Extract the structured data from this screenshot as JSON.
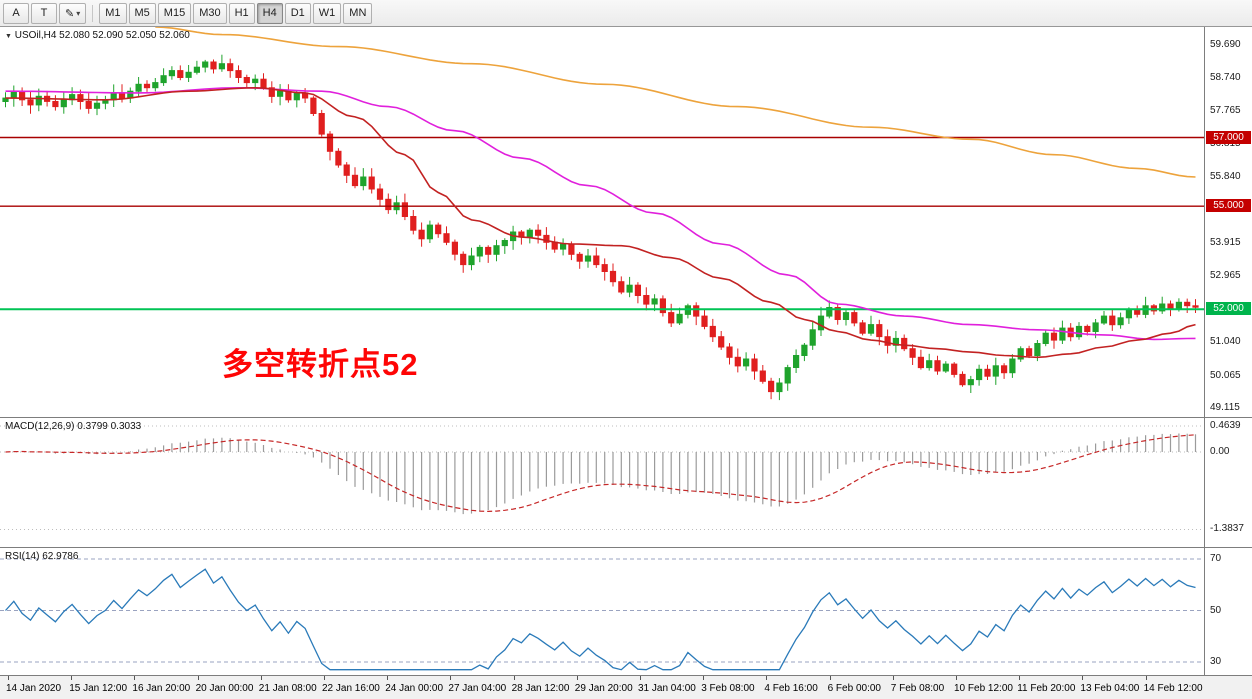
{
  "toolbar": {
    "tool_buttons": [
      {
        "label": "A"
      },
      {
        "label": "T"
      },
      {
        "label": "✎",
        "caret": "▾"
      }
    ],
    "timeframes": [
      "M1",
      "M5",
      "M15",
      "M30",
      "H1",
      "H4",
      "D1",
      "W1",
      "MN"
    ],
    "active_timeframe": "H4"
  },
  "main_chart": {
    "symbol_line": "USOil,H4 52.080 52.090 52.050 52.060",
    "annotation": "多空转折点52"
  },
  "macd_panel": {
    "header": "MACD(12,26,9) 0.3799 0.3033"
  },
  "rsi_panel": {
    "header": "RSI(14) 62.9786"
  },
  "chart_data": {
    "type": "candlestick",
    "symbol": "USOil",
    "timeframe": "H4",
    "ohlc_current": {
      "open": "52.080",
      "high": "52.090",
      "low": "52.050",
      "close": "52.060"
    },
    "price_ticks": [
      "59.690",
      "58.740",
      "57.765",
      "56.815",
      "55.840",
      "54.890",
      "53.915",
      "52.965",
      "51.990",
      "51.040",
      "50.065",
      "49.115"
    ],
    "h_lines": [
      {
        "value": 57.0,
        "label": "57.000",
        "color": "#a80000",
        "badge_color": "#c40000",
        "width": 1.4
      },
      {
        "value": 55.0,
        "label": "55.000",
        "color": "#a80000",
        "badge_color": "#c40000",
        "width": 1.4
      },
      {
        "value": 52.0,
        "label": "52.000",
        "color": "#00c455",
        "badge_color": "#00b44c",
        "width": 2
      }
    ],
    "candles": {
      "first_open": 58.05,
      "up_color": "#1fa32c",
      "down_color": "#e01f1f",
      "closes": [
        58.15,
        58.35,
        58.1,
        57.95,
        58.2,
        58.05,
        57.9,
        58.1,
        58.25,
        58.05,
        57.85,
        58.0,
        58.1,
        58.3,
        58.15,
        58.35,
        58.55,
        58.45,
        58.6,
        58.8,
        58.95,
        58.75,
        58.9,
        59.05,
        59.2,
        59.0,
        59.15,
        58.95,
        58.75,
        58.6,
        58.7,
        58.45,
        58.2,
        58.35,
        58.1,
        58.3,
        58.15,
        57.7,
        57.1,
        56.6,
        56.2,
        55.9,
        55.6,
        55.85,
        55.5,
        55.2,
        54.9,
        55.1,
        54.7,
        54.3,
        54.05,
        54.45,
        54.2,
        53.95,
        53.6,
        53.3,
        53.55,
        53.8,
        53.6,
        53.85,
        54.0,
        54.25,
        54.1,
        54.3,
        54.15,
        53.95,
        53.75,
        53.9,
        53.6,
        53.4,
        53.55,
        53.3,
        53.1,
        52.8,
        52.5,
        52.7,
        52.4,
        52.15,
        52.3,
        51.9,
        51.6,
        51.85,
        52.1,
        51.8,
        51.5,
        51.2,
        50.9,
        50.6,
        50.35,
        50.55,
        50.2,
        49.9,
        49.6,
        49.85,
        50.3,
        50.65,
        50.95,
        51.4,
        51.8,
        52.05,
        51.7,
        51.9,
        51.6,
        51.3,
        51.55,
        51.2,
        50.95,
        51.15,
        50.85,
        50.6,
        50.3,
        50.5,
        50.2,
        50.4,
        50.1,
        49.8,
        49.95,
        50.25,
        50.05,
        50.35,
        50.15,
        50.55,
        50.85,
        50.65,
        51.0,
        51.3,
        51.1,
        51.45,
        51.2,
        51.5,
        51.35,
        51.6,
        51.8,
        51.55,
        51.75,
        52.0,
        51.85,
        52.1,
        51.95,
        52.15,
        52.0,
        52.2,
        52.1,
        52.06
      ]
    },
    "ma_lines": [
      {
        "name": "slow-ma-orange",
        "color": "#eda33c",
        "points": [
          [
            18,
            60.22
          ],
          [
            26,
            60.0
          ],
          [
            40,
            59.65
          ],
          [
            56,
            59.15
          ],
          [
            72,
            58.55
          ],
          [
            88,
            57.9
          ],
          [
            104,
            57.3
          ],
          [
            116,
            56.95
          ],
          [
            126,
            56.5
          ],
          [
            136,
            56.1
          ],
          [
            143,
            55.85
          ]
        ]
      },
      {
        "name": "medium-ma-magenta",
        "color": "#e020dc",
        "points": [
          [
            0,
            58.35
          ],
          [
            16,
            58.3
          ],
          [
            28,
            58.45
          ],
          [
            38,
            58.35
          ],
          [
            46,
            57.9
          ],
          [
            54,
            57.2
          ],
          [
            62,
            56.4
          ],
          [
            70,
            55.6
          ],
          [
            78,
            54.8
          ],
          [
            86,
            53.9
          ],
          [
            94,
            53.0
          ],
          [
            100,
            52.15
          ],
          [
            108,
            51.8
          ],
          [
            116,
            51.55
          ],
          [
            124,
            51.4
          ],
          [
            132,
            51.25
          ],
          [
            138,
            51.12
          ],
          [
            143,
            51.15
          ]
        ]
      },
      {
        "name": "fast-ma-red",
        "color": "#c22222",
        "points": [
          [
            0,
            58.15
          ],
          [
            12,
            58.1
          ],
          [
            22,
            58.35
          ],
          [
            30,
            58.45
          ],
          [
            36,
            58.3
          ],
          [
            42,
            57.6
          ],
          [
            48,
            56.5
          ],
          [
            52,
            55.4
          ],
          [
            56,
            54.6
          ],
          [
            62,
            54.1
          ],
          [
            68,
            53.9
          ],
          [
            74,
            53.85
          ],
          [
            80,
            53.5
          ],
          [
            86,
            52.9
          ],
          [
            92,
            52.2
          ],
          [
            96,
            51.7
          ],
          [
            100,
            51.35
          ],
          [
            104,
            51.1
          ],
          [
            108,
            50.95
          ],
          [
            112,
            50.85
          ],
          [
            116,
            50.75
          ],
          [
            120,
            50.65
          ],
          [
            124,
            50.6
          ],
          [
            128,
            50.7
          ],
          [
            132,
            50.9
          ],
          [
            136,
            51.1
          ],
          [
            140,
            51.3
          ],
          [
            143,
            51.55
          ]
        ]
      }
    ],
    "macd": {
      "params": "12,26,9",
      "values_label": "0.3799 0.3033",
      "ticks": [
        "0.4639",
        "0.00",
        "-1.3837"
      ],
      "histogram_color": "#9b9b9b",
      "signal_color": "#c62828"
    },
    "rsi": {
      "period": 14,
      "current": "62.9786",
      "levels": [
        "70",
        "50",
        "30"
      ],
      "line_color": "#2a7ab9",
      "level_color": "#9aa3c0"
    },
    "time_labels": [
      "14 Jan 2020",
      "15 Jan 12:00",
      "16 Jan 20:00",
      "20 Jan 00:00",
      "21 Jan 08:00",
      "22 Jan 16:00",
      "24 Jan 00:00",
      "27 Jan 04:00",
      "28 Jan 12:00",
      "29 Jan 20:00",
      "31 Jan 04:00",
      "3 Feb 08:00",
      "4 Feb 16:00",
      "6 Feb 00:00",
      "7 Feb 08:00",
      "10 Feb 12:00",
      "11 Feb 20:00",
      "13 Feb 04:00",
      "14 Feb 12:00"
    ]
  }
}
